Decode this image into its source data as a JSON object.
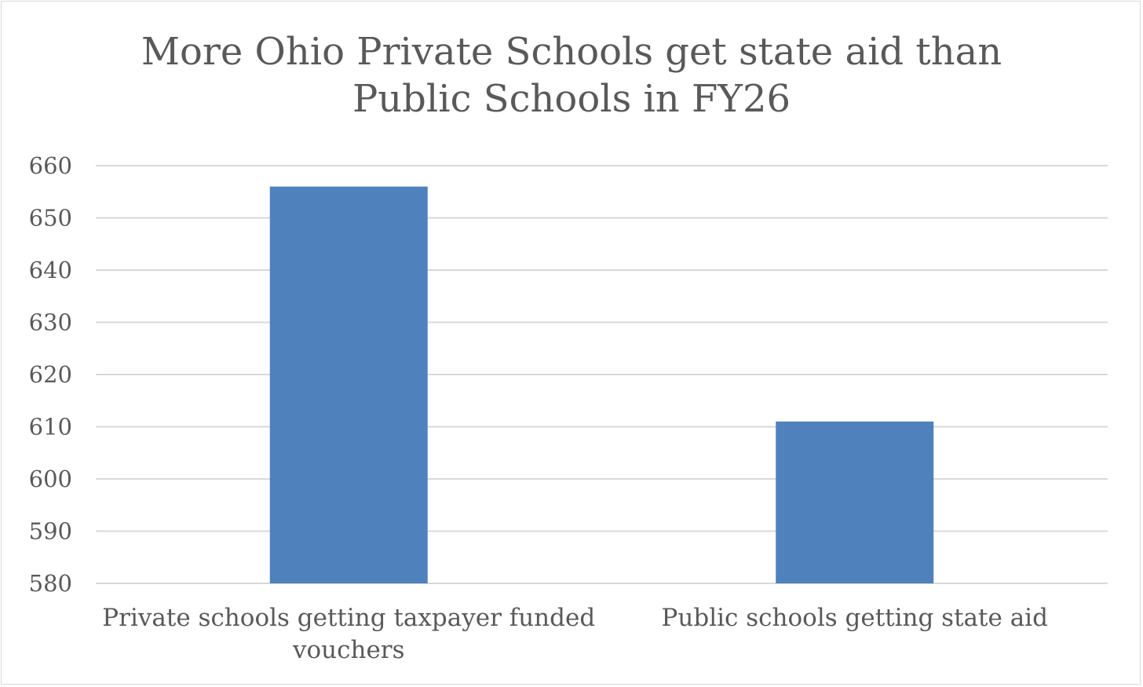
{
  "chart_data": {
    "type": "bar",
    "title_lines": [
      "More Ohio Private Schools get state aid than",
      "Public Schools in FY26"
    ],
    "categories": [
      [
        "Private schools getting taxpayer funded",
        "vouchers"
      ],
      [
        "Public schools getting state aid"
      ]
    ],
    "values": [
      656,
      611
    ],
    "ylim": [
      580,
      660
    ],
    "yticks": [
      580,
      590,
      600,
      610,
      620,
      630,
      640,
      650,
      660
    ],
    "grid": true,
    "legend": "none",
    "colors": {
      "bar": "#4f81bd",
      "grid": "#d9d9d9",
      "text": "#595959"
    }
  }
}
